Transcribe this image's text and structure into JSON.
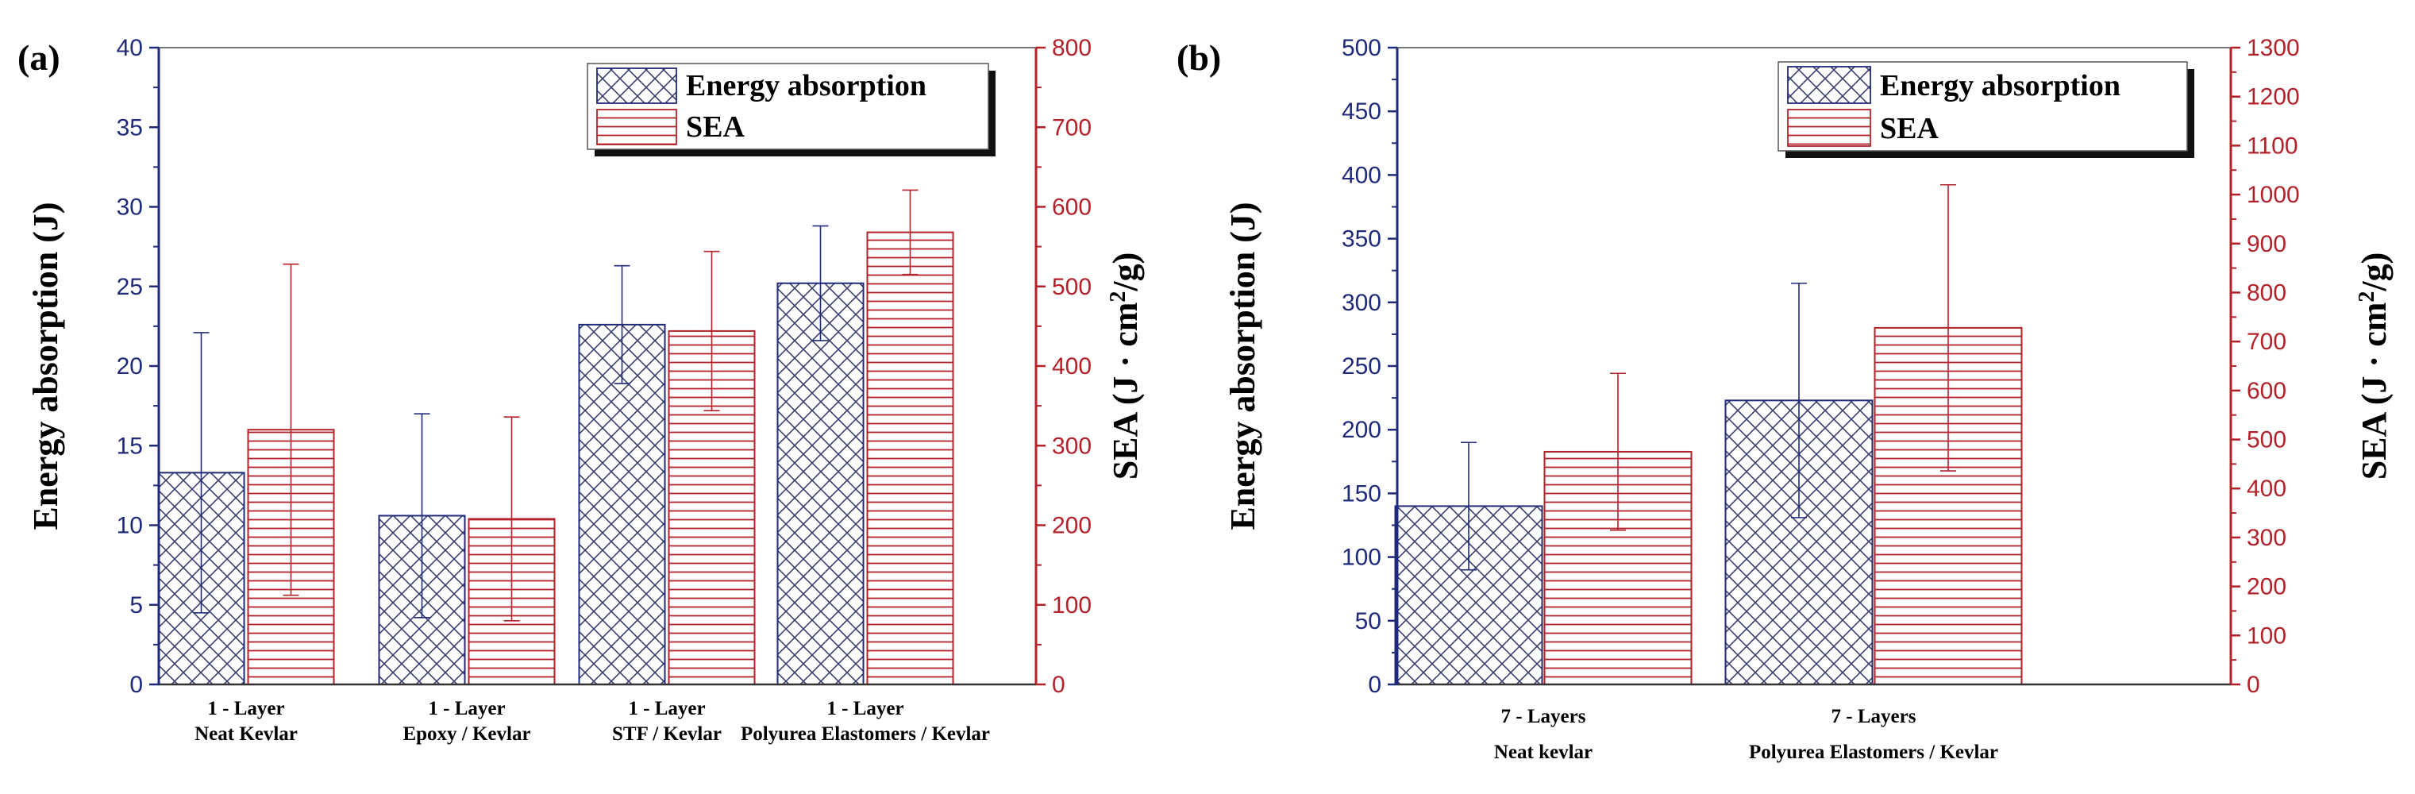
{
  "chart_data": [
    {
      "type": "bar",
      "panel_label": "(a)",
      "categories": [
        [
          "1 - Layer",
          "Neat Kevlar"
        ],
        [
          "1 - Layer",
          "Epoxy / Kevlar"
        ],
        [
          "1 - Layer",
          "STF / Kevlar"
        ],
        [
          "1 - Layer",
          "Polyurea Elastomers / Kevlar"
        ]
      ],
      "series": [
        {
          "name": "Energy absorption",
          "axis": "left",
          "values": [
            13.3,
            10.6,
            22.6,
            25.2
          ],
          "errors": [
            8.8,
            6.4,
            3.7,
            3.6
          ],
          "color": "#1f2a7a"
        },
        {
          "name": "SEA",
          "axis": "right",
          "values": [
            320,
            208,
            444,
            568
          ],
          "errors": [
            208,
            128,
            100,
            53
          ],
          "color": "#b3222a"
        }
      ],
      "ylabel": "Energy absorption (J)",
      "y2label_parts": [
        "SEA (J · cm",
        "2",
        "/g)"
      ],
      "ylim": [
        0,
        40
      ],
      "yticks": [
        0,
        5,
        10,
        15,
        20,
        25,
        30,
        35,
        40
      ],
      "y2lim": [
        0,
        800
      ],
      "y2ticks": [
        0,
        100,
        200,
        300,
        400,
        500,
        600,
        700,
        800
      ],
      "legend": "top-right"
    },
    {
      "type": "bar",
      "panel_label": "(b)",
      "categories": [
        [
          "7 - Layers",
          "Neat kevlar"
        ],
        [
          "7 - Layers",
          "Polyurea Elastomers / Kevlar"
        ]
      ],
      "series": [
        {
          "name": "Energy absorption",
          "axis": "left",
          "values": [
            140,
            223
          ],
          "errors": [
            50,
            92
          ],
          "color": "#1f2a7a"
        },
        {
          "name": "SEA",
          "axis": "right",
          "values": [
            475,
            728
          ],
          "errors": [
            160,
            292
          ],
          "color": "#b3222a"
        }
      ],
      "ylabel": "Energy absorption (J)",
      "y2label_parts": [
        "SEA (J · cm",
        "2",
        "/g)"
      ],
      "ylim": [
        0,
        500
      ],
      "yticks": [
        0,
        50,
        100,
        150,
        200,
        250,
        300,
        350,
        400,
        450,
        500
      ],
      "y2lim": [
        0,
        1300
      ],
      "y2ticks": [
        0,
        100,
        200,
        300,
        400,
        500,
        600,
        700,
        800,
        900,
        1000,
        1100,
        1200,
        1300
      ],
      "legend": "top-right"
    }
  ],
  "colors": {
    "left_axis": "#1f2a7a",
    "right_axis": "#b3222a"
  }
}
